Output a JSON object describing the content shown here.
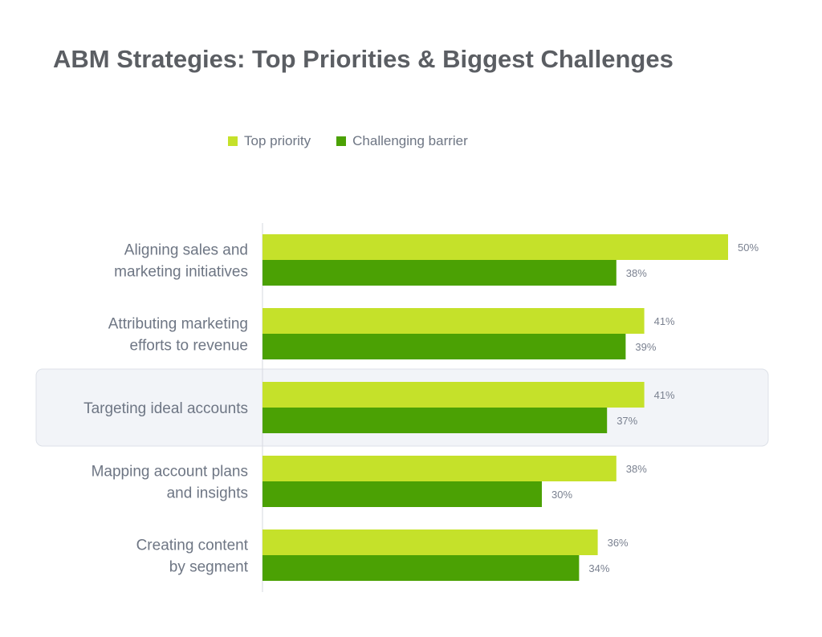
{
  "chart_data": {
    "type": "bar",
    "orientation": "horizontal",
    "title": "ABM Strategies: Top Priorities & Biggest Challenges",
    "categories": [
      [
        "Aligning sales and",
        "marketing initiatives"
      ],
      [
        "Attributing marketing",
        "efforts to revenue"
      ],
      [
        "Targeting ideal accounts"
      ],
      [
        "Mapping account plans",
        "and insights"
      ],
      [
        "Creating content",
        "by segment"
      ]
    ],
    "series": [
      {
        "name": "Top priority",
        "color": "#c5e12a",
        "values": [
          50,
          41,
          41,
          38,
          36
        ]
      },
      {
        "name": "Challenging barrier",
        "color": "#4ba104",
        "values": [
          38,
          39,
          37,
          30,
          34
        ]
      }
    ],
    "value_suffix": "%",
    "xlim": [
      0,
      50
    ],
    "highlighted_category_index": 2,
    "highlight_color": "#f2f4f8",
    "axis_color": "#d6d9df",
    "legend_position": "top"
  }
}
